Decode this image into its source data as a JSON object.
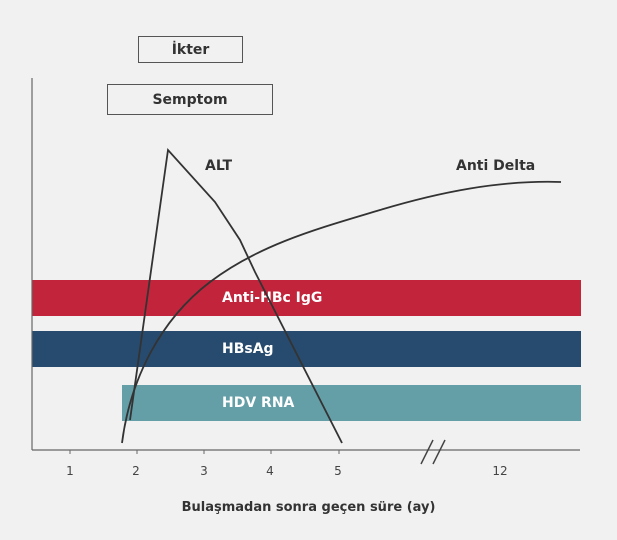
{
  "boxes": {
    "jaundice": "İkter",
    "symptoms": "Semptom"
  },
  "curves": {
    "alt": "ALT",
    "anti_delta": "Anti Delta"
  },
  "bars": [
    {
      "label": "Anti-HBc IgG",
      "color": "#c2253b"
    },
    {
      "label": "HBsAg",
      "color": "#274b6e"
    },
    {
      "label": "HDV RNA",
      "color": "#649ea7"
    }
  ],
  "x_axis": {
    "label": "Bulaşmadan sonra geçen süre (ay)",
    "ticks": [
      "1",
      "2",
      "3",
      "4",
      "5",
      "12"
    ],
    "break_after": "5"
  }
}
